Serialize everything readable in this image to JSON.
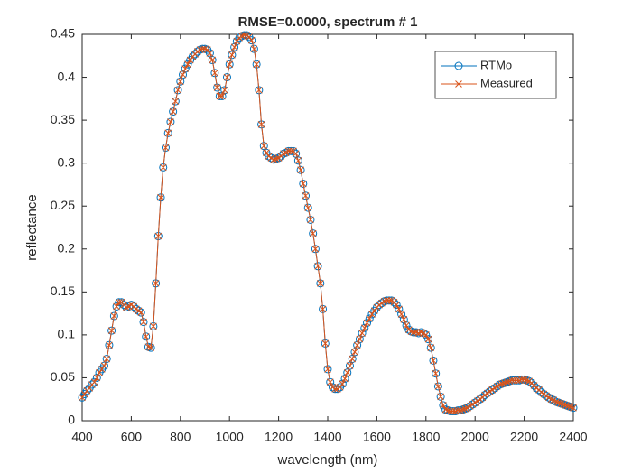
{
  "chart_data": {
    "type": "line",
    "title": "RMSE=0.0000, spectrum # 1",
    "x_label": "wavelength (nm)",
    "y_label": "reflectance",
    "x": [
      400,
      410,
      420,
      430,
      440,
      450,
      460,
      470,
      480,
      490,
      500,
      510,
      520,
      530,
      540,
      550,
      560,
      570,
      580,
      590,
      600,
      610,
      620,
      630,
      640,
      650,
      660,
      670,
      680,
      690,
      700,
      710,
      720,
      730,
      740,
      750,
      760,
      770,
      780,
      790,
      800,
      810,
      820,
      830,
      840,
      850,
      860,
      870,
      880,
      890,
      900,
      910,
      920,
      930,
      940,
      950,
      960,
      970,
      980,
      990,
      1000,
      1010,
      1020,
      1030,
      1040,
      1050,
      1060,
      1070,
      1080,
      1090,
      1100,
      1110,
      1120,
      1130,
      1140,
      1150,
      1160,
      1170,
      1180,
      1190,
      1200,
      1210,
      1220,
      1230,
      1240,
      1250,
      1260,
      1270,
      1280,
      1290,
      1300,
      1310,
      1320,
      1330,
      1340,
      1350,
      1360,
      1370,
      1380,
      1390,
      1400,
      1410,
      1420,
      1430,
      1440,
      1450,
      1460,
      1470,
      1480,
      1490,
      1500,
      1510,
      1520,
      1530,
      1540,
      1550,
      1560,
      1570,
      1580,
      1590,
      1600,
      1610,
      1620,
      1630,
      1640,
      1650,
      1660,
      1670,
      1680,
      1690,
      1700,
      1710,
      1720,
      1730,
      1740,
      1750,
      1760,
      1770,
      1780,
      1790,
      1800,
      1810,
      1820,
      1830,
      1840,
      1850,
      1860,
      1870,
      1880,
      1890,
      1900,
      1910,
      1920,
      1930,
      1940,
      1950,
      1960,
      1970,
      1980,
      1990,
      2000,
      2010,
      2020,
      2030,
      2040,
      2050,
      2060,
      2070,
      2080,
      2090,
      2100,
      2110,
      2120,
      2130,
      2140,
      2150,
      2160,
      2170,
      2180,
      2190,
      2200,
      2210,
      2220,
      2230,
      2240,
      2250,
      2260,
      2270,
      2280,
      2290,
      2300,
      2310,
      2320,
      2330,
      2340,
      2350,
      2360,
      2370,
      2380,
      2390,
      2400
    ],
    "series": [
      {
        "name": "RTMo",
        "color": "#0072bd",
        "marker": "o",
        "values": [
          0.027,
          0.031,
          0.035,
          0.038,
          0.042,
          0.045,
          0.05,
          0.056,
          0.06,
          0.064,
          0.072,
          0.088,
          0.105,
          0.122,
          0.133,
          0.138,
          0.138,
          0.135,
          0.132,
          0.133,
          0.135,
          0.133,
          0.13,
          0.128,
          0.126,
          0.115,
          0.098,
          0.086,
          0.085,
          0.11,
          0.16,
          0.215,
          0.26,
          0.295,
          0.318,
          0.335,
          0.348,
          0.36,
          0.372,
          0.385,
          0.395,
          0.403,
          0.41,
          0.415,
          0.42,
          0.424,
          0.427,
          0.43,
          0.432,
          0.433,
          0.433,
          0.432,
          0.428,
          0.42,
          0.405,
          0.388,
          0.378,
          0.378,
          0.385,
          0.4,
          0.415,
          0.426,
          0.435,
          0.442,
          0.446,
          0.448,
          0.449,
          0.449,
          0.447,
          0.443,
          0.433,
          0.415,
          0.385,
          0.345,
          0.32,
          0.312,
          0.308,
          0.306,
          0.304,
          0.305,
          0.306,
          0.308,
          0.311,
          0.312,
          0.314,
          0.314,
          0.314,
          0.311,
          0.303,
          0.292,
          0.276,
          0.262,
          0.248,
          0.234,
          0.218,
          0.2,
          0.18,
          0.16,
          0.13,
          0.09,
          0.06,
          0.045,
          0.039,
          0.037,
          0.037,
          0.039,
          0.043,
          0.049,
          0.056,
          0.064,
          0.072,
          0.08,
          0.088,
          0.095,
          0.102,
          0.108,
          0.114,
          0.119,
          0.124,
          0.128,
          0.132,
          0.135,
          0.137,
          0.139,
          0.14,
          0.14,
          0.14,
          0.138,
          0.135,
          0.13,
          0.124,
          0.118,
          0.111,
          0.106,
          0.104,
          0.103,
          0.103,
          0.102,
          0.103,
          0.102,
          0.1,
          0.095,
          0.085,
          0.07,
          0.055,
          0.04,
          0.028,
          0.018,
          0.013,
          0.012,
          0.011,
          0.011,
          0.011,
          0.012,
          0.012,
          0.013,
          0.014,
          0.015,
          0.017,
          0.019,
          0.021,
          0.023,
          0.025,
          0.027,
          0.03,
          0.032,
          0.034,
          0.036,
          0.038,
          0.04,
          0.042,
          0.043,
          0.044,
          0.045,
          0.046,
          0.047,
          0.047,
          0.047,
          0.047,
          0.048,
          0.048,
          0.047,
          0.046,
          0.044,
          0.041,
          0.038,
          0.036,
          0.033,
          0.031,
          0.029,
          0.027,
          0.025,
          0.024,
          0.022,
          0.021,
          0.02,
          0.019,
          0.018,
          0.017,
          0.016,
          0.015
        ]
      },
      {
        "name": "Measured",
        "color": "#d95319",
        "marker": "x",
        "values": [
          0.027,
          0.031,
          0.035,
          0.038,
          0.042,
          0.045,
          0.05,
          0.056,
          0.06,
          0.064,
          0.072,
          0.088,
          0.105,
          0.122,
          0.133,
          0.138,
          0.138,
          0.135,
          0.132,
          0.133,
          0.135,
          0.133,
          0.13,
          0.128,
          0.126,
          0.115,
          0.098,
          0.086,
          0.085,
          0.11,
          0.16,
          0.215,
          0.26,
          0.295,
          0.318,
          0.335,
          0.348,
          0.36,
          0.372,
          0.385,
          0.395,
          0.403,
          0.41,
          0.415,
          0.42,
          0.424,
          0.427,
          0.43,
          0.432,
          0.433,
          0.433,
          0.432,
          0.428,
          0.42,
          0.405,
          0.388,
          0.378,
          0.378,
          0.385,
          0.4,
          0.415,
          0.426,
          0.435,
          0.442,
          0.446,
          0.448,
          0.449,
          0.449,
          0.447,
          0.443,
          0.433,
          0.415,
          0.385,
          0.345,
          0.32,
          0.312,
          0.308,
          0.306,
          0.304,
          0.305,
          0.306,
          0.308,
          0.311,
          0.312,
          0.314,
          0.314,
          0.314,
          0.311,
          0.303,
          0.292,
          0.276,
          0.262,
          0.248,
          0.234,
          0.218,
          0.2,
          0.18,
          0.16,
          0.13,
          0.09,
          0.06,
          0.045,
          0.039,
          0.037,
          0.037,
          0.039,
          0.043,
          0.049,
          0.056,
          0.064,
          0.072,
          0.08,
          0.088,
          0.095,
          0.102,
          0.108,
          0.114,
          0.119,
          0.124,
          0.128,
          0.132,
          0.135,
          0.137,
          0.139,
          0.14,
          0.14,
          0.14,
          0.138,
          0.135,
          0.13,
          0.124,
          0.118,
          0.111,
          0.106,
          0.104,
          0.103,
          0.103,
          0.102,
          0.103,
          0.102,
          0.1,
          0.095,
          0.085,
          0.07,
          0.055,
          0.04,
          0.028,
          0.018,
          0.013,
          0.012,
          0.011,
          0.011,
          0.011,
          0.012,
          0.012,
          0.013,
          0.014,
          0.015,
          0.017,
          0.019,
          0.021,
          0.023,
          0.025,
          0.027,
          0.03,
          0.032,
          0.034,
          0.036,
          0.038,
          0.04,
          0.042,
          0.043,
          0.044,
          0.045,
          0.046,
          0.047,
          0.047,
          0.047,
          0.047,
          0.048,
          0.048,
          0.047,
          0.046,
          0.044,
          0.041,
          0.038,
          0.036,
          0.033,
          0.031,
          0.029,
          0.027,
          0.025,
          0.024,
          0.022,
          0.021,
          0.02,
          0.019,
          0.018,
          0.017,
          0.016,
          0.015
        ]
      }
    ],
    "xlim": [
      400,
      2400
    ],
    "xticks": [
      400,
      600,
      800,
      1000,
      1200,
      1400,
      1600,
      1800,
      2000,
      2200,
      2400
    ],
    "ylim": [
      0,
      0.45
    ],
    "yticks": [
      0,
      0.05,
      0.1,
      0.15,
      0.2,
      0.25,
      0.3,
      0.35,
      0.4,
      0.45
    ],
    "grid": false,
    "legend": "northeast"
  }
}
